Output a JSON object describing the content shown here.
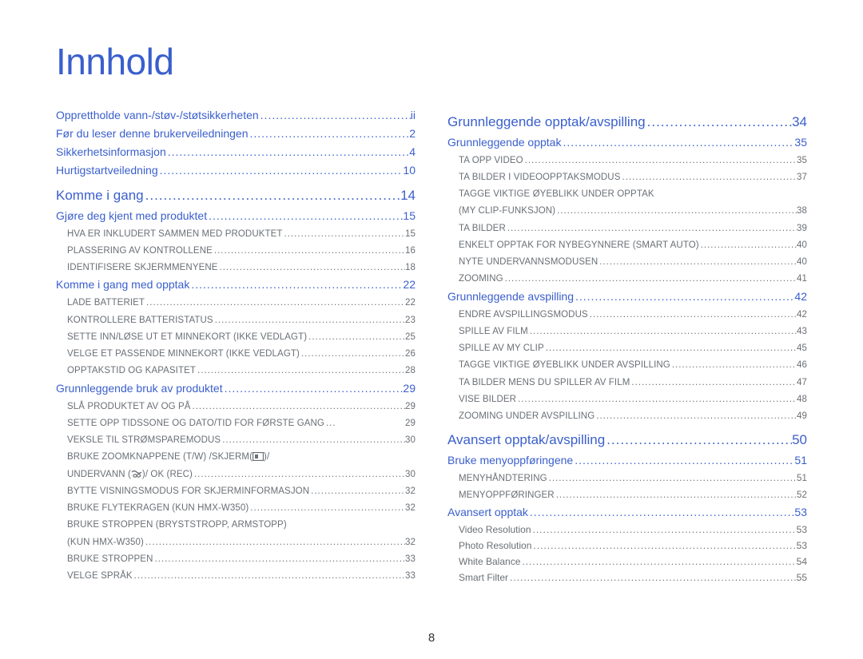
{
  "page_title": "Innhold",
  "page_number": "8",
  "colors": {
    "heading": "#3a5fcd",
    "body": "#6a6f75",
    "background": "#ffffff"
  },
  "fonts": {
    "title_size": 46,
    "l0_size": 17,
    "l1_size": 14,
    "l2_size": 11.5
  },
  "columns": [
    {
      "entries": [
        {
          "level": 1,
          "label": "Opprettholde vann-/støv-/støtsikkerheten",
          "page": "ii"
        },
        {
          "level": 1,
          "label": "Før du leser denne brukerveiledningen",
          "page": "2"
        },
        {
          "level": 1,
          "label": "Sikkerhetsinformasjon",
          "page": "4"
        },
        {
          "level": 1,
          "label": "Hurtigstartveiledning",
          "page": "10"
        },
        {
          "level": 0,
          "label": "Komme i gang",
          "page": "14"
        },
        {
          "level": 1,
          "label": "Gjøre deg kjent med produktet",
          "page": "15"
        },
        {
          "level": 2,
          "label": "HVA ER INKLUDERT SAMMEN MED PRODUKTET",
          "page": "15"
        },
        {
          "level": 2,
          "label": "PLASSERING AV KONTROLLENE",
          "page": "16"
        },
        {
          "level": 2,
          "label": "IDENTIFISERE SKJERMMENYENE",
          "page": "18"
        },
        {
          "level": 1,
          "label": "Komme i gang med opptak",
          "page": "22"
        },
        {
          "level": 2,
          "label": "LADE BATTERIET",
          "page": "22"
        },
        {
          "level": 2,
          "label": "KONTROLLERE BATTERISTATUS",
          "page": "23"
        },
        {
          "level": 2,
          "label": "SETTE INN/LØSE UT ET MINNEKORT (IKKE VEDLAGT)",
          "page": "25"
        },
        {
          "level": 2,
          "label": "VELGE ET PASSENDE MINNEKORT (IKKE VEDLAGT)",
          "page": "26"
        },
        {
          "level": 2,
          "label": "OPPTAKSTID OG KAPASITET",
          "page": "28"
        },
        {
          "level": 1,
          "label": "Grunnleggende bruk av produktet",
          "page": "29"
        },
        {
          "level": 2,
          "label": "SLÅ PRODUKTET AV OG PÅ",
          "page": "29"
        },
        {
          "level": 2,
          "label": "SETTE OPP TIDSSONE OG DATO/TID FOR FØRSTE GANG",
          "page": "29",
          "leader": "... "
        },
        {
          "level": 2,
          "label": "VEKSLE TIL STRØMSPAREMODUS",
          "page": "30"
        },
        {
          "level": 2,
          "label_parts": [
            "BRUKE ZOOMKNAPPENE (T/W) /SKJERM(",
            {
              "icon": "screen"
            },
            ")/"
          ],
          "nopage": true
        },
        {
          "level": 2,
          "label_parts": [
            "UNDERVANN (",
            {
              "icon": "underwater"
            },
            ")/ OK (REC)"
          ],
          "page": "30"
        },
        {
          "level": 2,
          "label": "BYTTE VISNINGSMODUS FOR SKJERMINFORMASJON",
          "page": "32"
        },
        {
          "level": 2,
          "label": "BRUKE FLYTEKRAGEN (KUN HMX-W350)",
          "page": "32"
        },
        {
          "level": 2,
          "label": "BRUKE STROPPEN (BRYSTSTROPP, ARMSTOPP)",
          "nopage": true
        },
        {
          "level": 2,
          "label": "(KUN HMX-W350)",
          "page": "32"
        },
        {
          "level": 2,
          "label": "BRUKE STROPPEN",
          "page": "33"
        },
        {
          "level": 2,
          "label": "VELGE SPRÅK",
          "page": "33"
        }
      ]
    },
    {
      "entries": [
        {
          "level": 0,
          "label": "Grunnleggende opptak/avspilling",
          "page": "34"
        },
        {
          "level": 1,
          "label": "Grunnleggende opptak",
          "page": "35"
        },
        {
          "level": 2,
          "label": "TA OPP VIDEO",
          "page": "35"
        },
        {
          "level": 2,
          "label": "TA BILDER I VIDEOOPPTAKSMODUS",
          "page": "37"
        },
        {
          "level": 2,
          "label": "TAGGE VIKTIGE ØYEBLIKK UNDER OPPTAK",
          "nopage": true
        },
        {
          "level": 2,
          "label": "(MY CLIP-FUNKSJON)",
          "page": "38"
        },
        {
          "level": 2,
          "label": "TA BILDER",
          "page": "39"
        },
        {
          "level": 2,
          "label": "ENKELT OPPTAK FOR NYBEGYNNERE (SMART AUTO)",
          "page": "40"
        },
        {
          "level": 2,
          "label": "NYTE UNDERVANNSMODUSEN",
          "page": "40"
        },
        {
          "level": 2,
          "label": "ZOOMING",
          "page": "41"
        },
        {
          "level": 1,
          "label": "Grunnleggende avspilling",
          "page": "42"
        },
        {
          "level": 2,
          "label": "ENDRE AVSPILLINGSMODUS",
          "page": "42"
        },
        {
          "level": 2,
          "label": "SPILLE AV FILM",
          "page": "43"
        },
        {
          "level": 2,
          "label": "SPILLE AV MY CLIP",
          "page": "45"
        },
        {
          "level": 2,
          "label": "TAGGE VIKTIGE ØYEBLIKK UNDER AVSPILLING",
          "page": "46"
        },
        {
          "level": 2,
          "label": "TA BILDER MENS DU SPILLER AV FILM",
          "page": "47"
        },
        {
          "level": 2,
          "label": "VISE BILDER",
          "page": "48"
        },
        {
          "level": 2,
          "label": "ZOOMING UNDER AVSPILLING",
          "page": "49"
        },
        {
          "level": 0,
          "label": "Avansert opptak/avspilling",
          "page": "50"
        },
        {
          "level": 1,
          "label": "Bruke menyoppføringene",
          "page": "51"
        },
        {
          "level": 2,
          "label": "MENYHÅNDTERING",
          "page": "51"
        },
        {
          "level": 2,
          "label": "MENYOPPFØRINGER",
          "page": "52"
        },
        {
          "level": 1,
          "label": "Avansert opptak",
          "page": "53"
        },
        {
          "level": 2,
          "label": "Video Resolution",
          "page": "53",
          "article": true
        },
        {
          "level": 2,
          "label": "Photo Resolution",
          "page": "53",
          "article": true
        },
        {
          "level": 2,
          "label": "White Balance",
          "page": "54",
          "article": true
        },
        {
          "level": 2,
          "label": "Smart Filter",
          "page": "55",
          "article": true
        }
      ]
    }
  ],
  "icons": {
    "screen": "screen-icon",
    "underwater": "underwater-icon"
  }
}
